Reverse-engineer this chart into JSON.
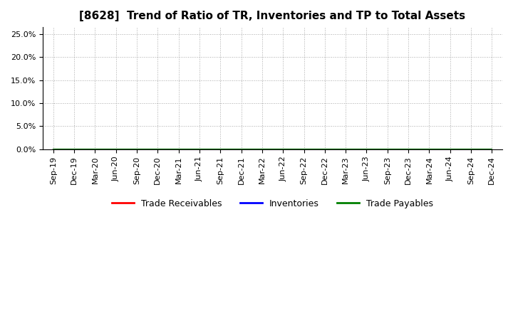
{
  "title": "[8628]  Trend of Ratio of TR, Inventories and TP to Total Assets",
  "title_fontsize": 11,
  "title_fontweight": "bold",
  "x_labels": [
    "Sep-19",
    "Dec-19",
    "Mar-20",
    "Jun-20",
    "Sep-20",
    "Dec-20",
    "Mar-21",
    "Jun-21",
    "Sep-21",
    "Dec-21",
    "Mar-22",
    "Jun-22",
    "Sep-22",
    "Dec-22",
    "Mar-23",
    "Jun-23",
    "Sep-23",
    "Dec-23",
    "Mar-24",
    "Jun-24",
    "Sep-24",
    "Dec-24"
  ],
  "yticks": [
    0.0,
    0.05,
    0.1,
    0.15,
    0.2,
    0.25
  ],
  "ylim": [
    0.0,
    0.265
  ],
  "ytick_labels": [
    "0.0%",
    "5.0%",
    "10.0%",
    "15.0%",
    "20.0%",
    "25.0%"
  ],
  "trade_receivables": [
    0,
    0,
    0,
    0,
    0,
    0,
    0,
    0,
    0,
    0,
    0,
    0,
    0,
    0,
    0,
    0,
    0,
    0,
    0,
    0,
    0,
    0
  ],
  "inventories": [
    0,
    0,
    0,
    0,
    0,
    0,
    0,
    0,
    0,
    0,
    0,
    0,
    0,
    0,
    0,
    0,
    0,
    0,
    0,
    0,
    0,
    0
  ],
  "trade_payables": [
    0,
    0,
    0,
    0,
    0,
    0,
    0,
    0,
    0,
    0,
    0,
    0,
    0,
    0,
    0,
    0,
    0,
    0,
    0,
    0,
    0,
    0
  ],
  "line_colors": {
    "trade_receivables": "#FF0000",
    "inventories": "#0000FF",
    "trade_payables": "#008000"
  },
  "legend_labels": [
    "Trade Receivables",
    "Inventories",
    "Trade Payables"
  ],
  "background_color": "#FFFFFF",
  "grid_color": "#AAAAAA",
  "grid_style": "dotted",
  "tick_label_fontsize": 8,
  "legend_fontsize": 9
}
